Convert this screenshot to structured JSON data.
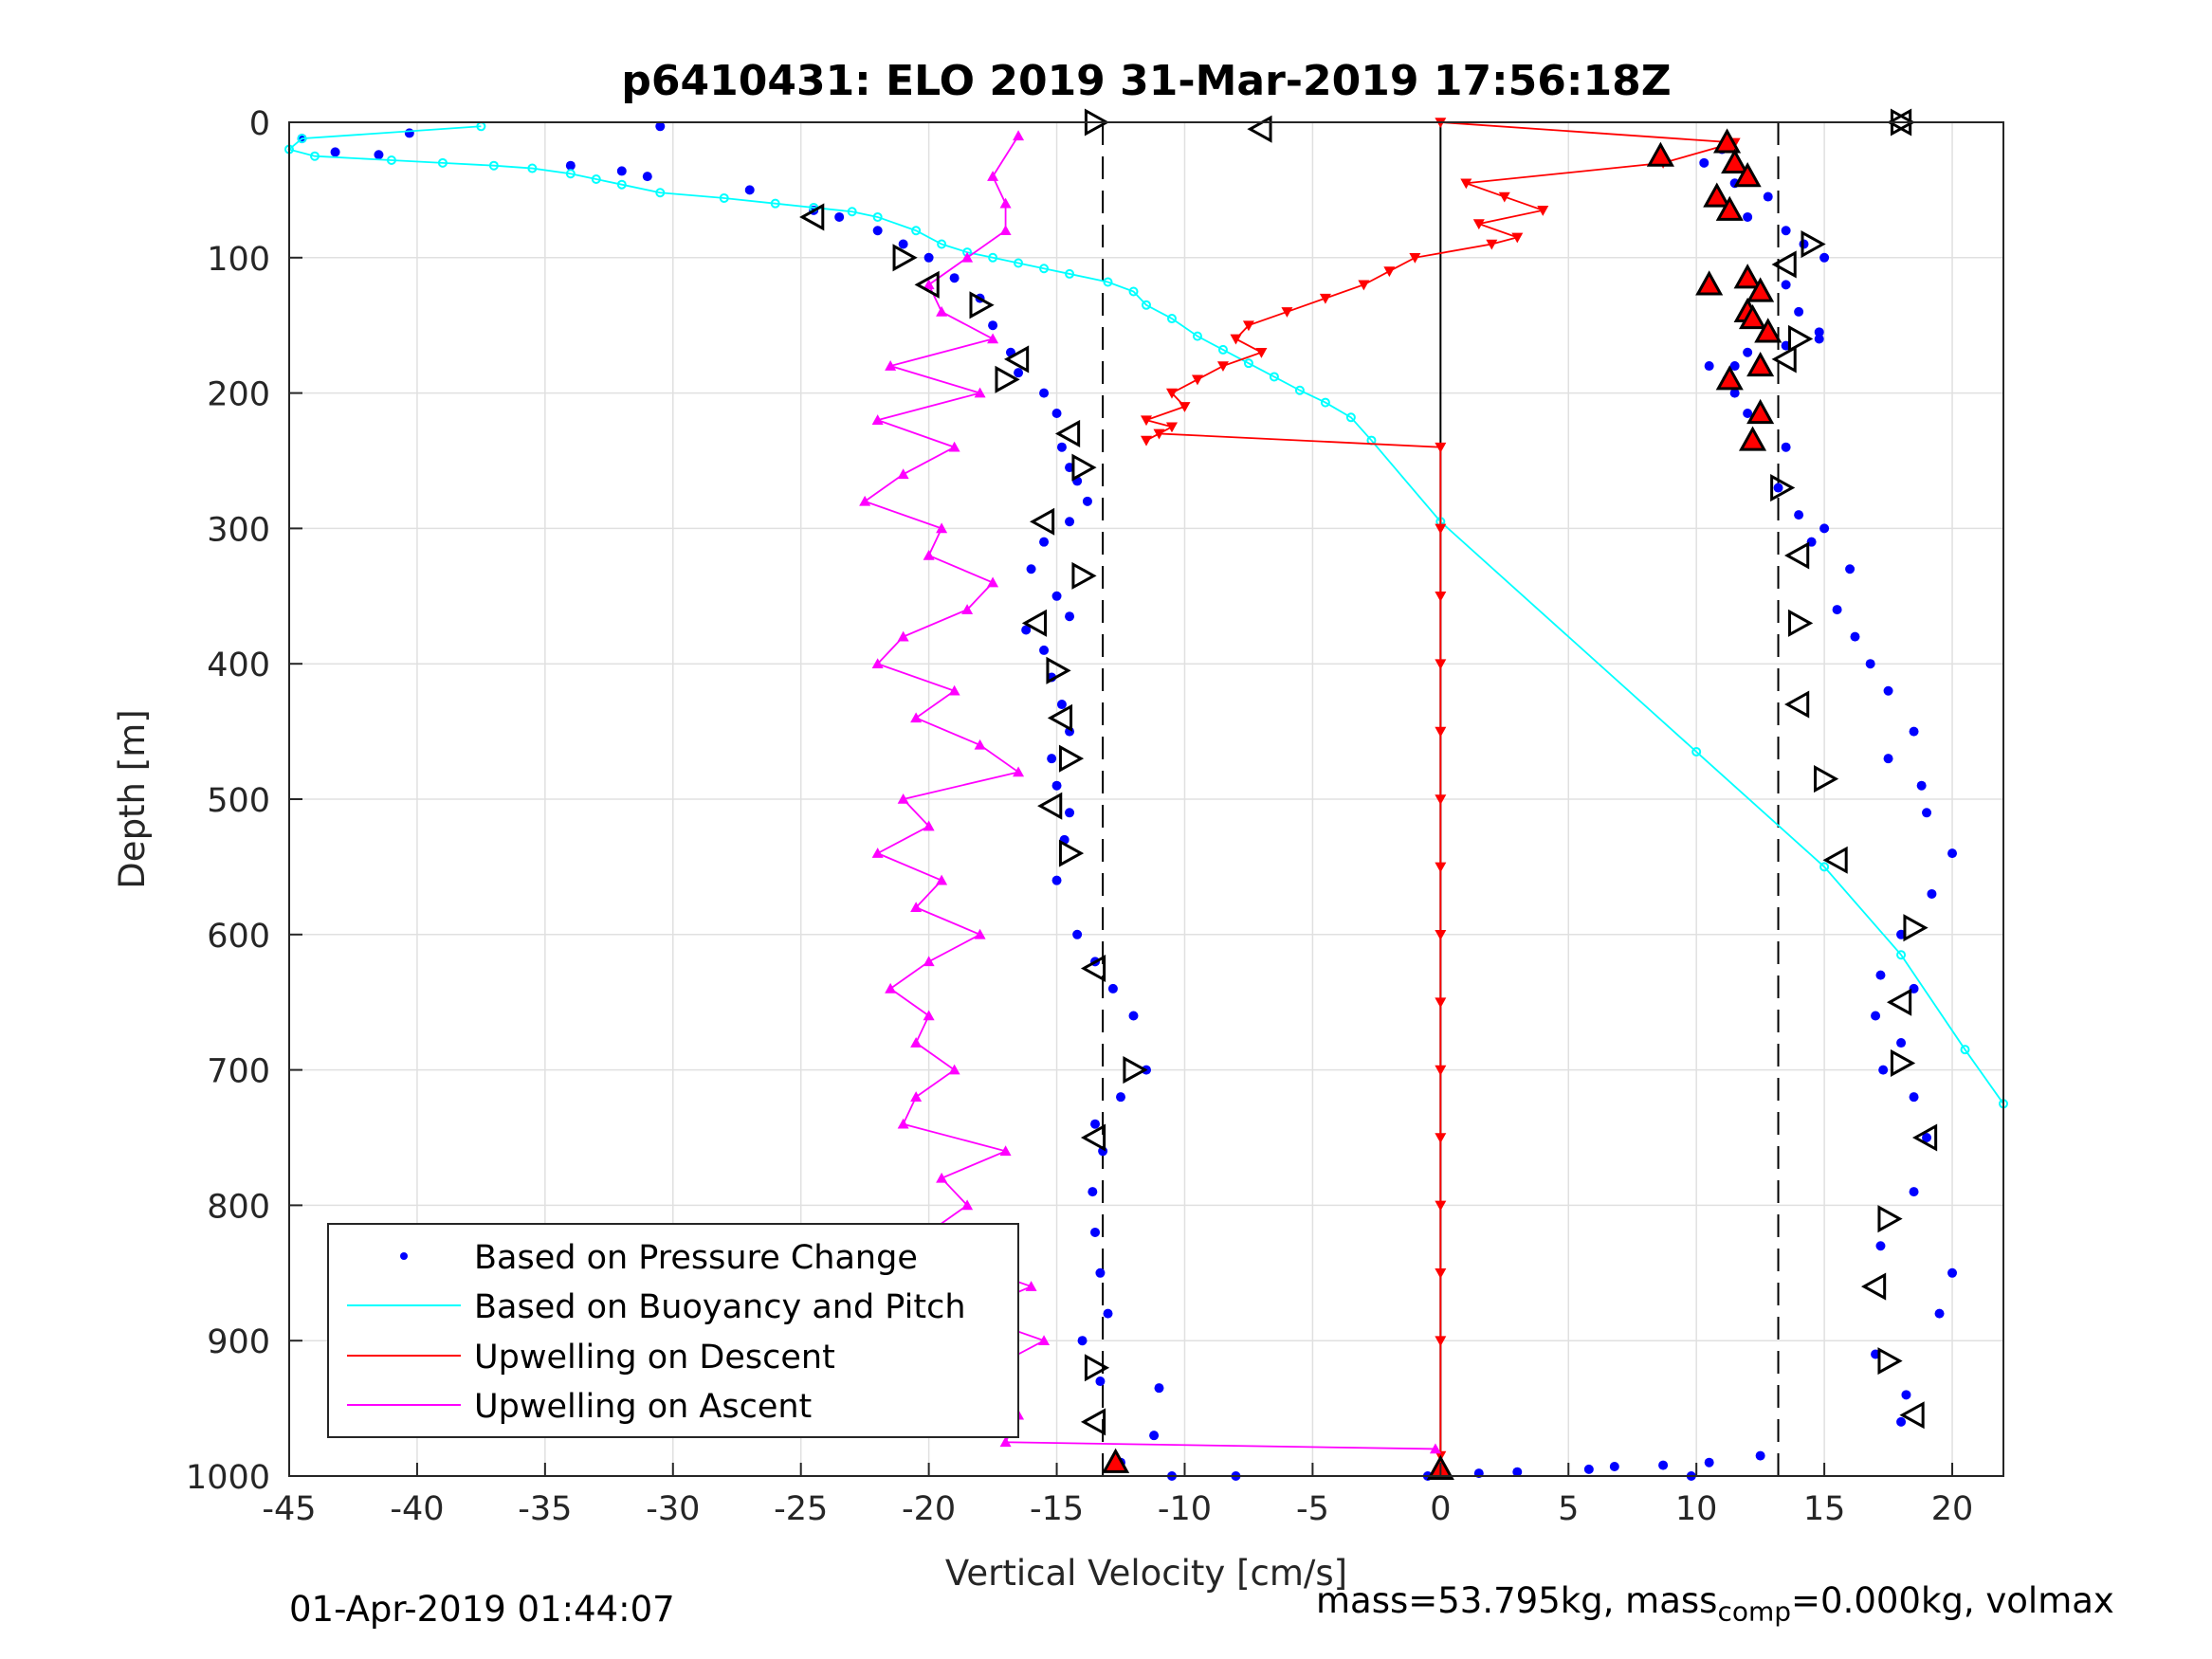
{
  "chart_data": {
    "type": "scatter",
    "title": "p6410431: ELO 2019 31-Mar-2019 17:56:18Z",
    "xlabel": "Vertical Velocity [cm/s]",
    "ylabel": "Depth [m]",
    "xlim": [
      -45,
      22
    ],
    "ylim": [
      1000,
      0
    ],
    "y_reversed": true,
    "xticks": [
      -45,
      -40,
      -35,
      -30,
      -25,
      -20,
      -15,
      -10,
      -5,
      0,
      5,
      10,
      15,
      20
    ],
    "yticks": [
      0,
      100,
      200,
      300,
      400,
      500,
      600,
      700,
      800,
      900,
      1000
    ],
    "grid": true,
    "legend_position": "bottom-left",
    "colors": {
      "pressure": "#0000ff",
      "buoyancy": "#00ffff",
      "descent": "#ff0000",
      "ascent": "#ff00ff"
    },
    "reference_lines": [
      {
        "x": -13.2,
        "style": "dashed"
      },
      {
        "x": 13.2,
        "style": "dashed"
      },
      {
        "x": 0,
        "style": "solid"
      }
    ],
    "series": [
      {
        "name": "Based on Pressure Change",
        "marker": "dot",
        "color": "#0000ff",
        "x": [
          -44.5,
          -40.3,
          -30.5,
          -43.2,
          -41.5,
          -34.0,
          -32.0,
          -31.0,
          -27.0,
          -24.5,
          -23.5,
          -22.0,
          -21.0,
          -20.0,
          -19.0,
          -18.0,
          -17.5,
          -16.8,
          -16.5,
          -15.5,
          -15.0,
          -14.8,
          -14.5,
          -14.2,
          -13.8,
          -14.5,
          -15.5,
          -16.0,
          -15.0,
          -14.5,
          -16.2,
          -15.5,
          -15.2,
          -14.8,
          -14.5,
          -15.2,
          -15.0,
          -14.5,
          -14.7,
          -15.0,
          -14.2,
          -13.5,
          -12.8,
          -12.0,
          -11.5,
          -12.5,
          -13.5,
          -13.2,
          -13.6,
          -13.5,
          -13.3,
          -13.0,
          -14.0,
          -13.3,
          -11.0,
          -11.2,
          -12.5,
          -10.5,
          -8.0,
          -0.5,
          1.5,
          3.0,
          5.8,
          6.8,
          8.7,
          10.5,
          12.5,
          11.0,
          10.3,
          11.5,
          12.8,
          12.0,
          13.5,
          14.2,
          15.0,
          13.5,
          14.0,
          14.8,
          12.0,
          10.5,
          11.2,
          11.5,
          12.0,
          13.5,
          13.2,
          14.0,
          15.0,
          14.5,
          16.0,
          15.5,
          16.2,
          16.8,
          17.5,
          18.5,
          17.5,
          18.8,
          19.0,
          20.0,
          19.2,
          18.0,
          17.2,
          18.5,
          17.0,
          18.0,
          17.3,
          18.5,
          19.0,
          18.5,
          17.2,
          20.0,
          19.5,
          17.0,
          18.2,
          18.0,
          14.8,
          13.5,
          11.5,
          9.8
        ],
        "y": [
          12,
          8,
          3,
          22,
          24,
          32,
          36,
          40,
          50,
          65,
          70,
          80,
          90,
          100,
          115,
          130,
          150,
          170,
          185,
          200,
          215,
          240,
          255,
          265,
          280,
          295,
          310,
          330,
          350,
          365,
          375,
          390,
          410,
          430,
          450,
          470,
          490,
          510,
          530,
          560,
          600,
          620,
          640,
          660,
          700,
          720,
          740,
          760,
          790,
          820,
          850,
          880,
          900,
          930,
          935,
          970,
          990,
          1000,
          1000,
          1000,
          998,
          997,
          995,
          993,
          992,
          990,
          985,
          20,
          30,
          45,
          55,
          70,
          80,
          90,
          100,
          120,
          140,
          160,
          170,
          180,
          190,
          200,
          215,
          240,
          270,
          290,
          300,
          310,
          330,
          360,
          380,
          400,
          420,
          450,
          470,
          490,
          510,
          540,
          570,
          600,
          630,
          640,
          660,
          680,
          700,
          720,
          750,
          790,
          830,
          850,
          880,
          910,
          940,
          960,
          155,
          165,
          180,
          1000
        ]
      },
      {
        "name": "Based on Buoyancy and Pitch",
        "marker": "circle-line",
        "color": "#00ffff",
        "x": [
          -37.5,
          -44.5,
          -45.0,
          -44.0,
          -41.0,
          -39.0,
          -37.0,
          -35.5,
          -34.0,
          -33.0,
          -32.0,
          -30.5,
          -28.0,
          -26.0,
          -24.5,
          -23.0,
          -22.0,
          -20.5,
          -19.5,
          -18.5,
          -17.5,
          -16.5,
          -15.5,
          -14.5,
          -13.0,
          -12.0,
          -11.5,
          -10.5,
          -9.5,
          -8.5,
          -7.5,
          -6.5,
          -5.5,
          -4.5,
          -3.5,
          -2.7,
          0.0,
          10.0,
          15.0,
          18.0,
          20.5,
          22.0
        ],
        "y": [
          3,
          12,
          20,
          25,
          28,
          30,
          32,
          34,
          38,
          42,
          46,
          52,
          56,
          60,
          63,
          66,
          70,
          80,
          90,
          96,
          100,
          104,
          108,
          112,
          118,
          125,
          135,
          145,
          158,
          168,
          178,
          188,
          198,
          207,
          218,
          235,
          295,
          465,
          550,
          615,
          685,
          725
        ]
      },
      {
        "name": "Upwelling on Descent",
        "marker": "triangle-down",
        "color": "#ff0000",
        "x": [
          0.0,
          11.5,
          8.7,
          1.0,
          2.5,
          4.0,
          1.5,
          3.0,
          2.0,
          -1.0,
          -2.0,
          -3.0,
          -4.5,
          -6.0,
          -7.5,
          -8.0,
          -7.0,
          -8.5,
          -9.5,
          -10.5,
          -10.0,
          -11.5,
          -10.5,
          -11.5,
          -11.0,
          0.0,
          0.0,
          0.0,
          0.0,
          0.0,
          0.0,
          0.0,
          0.0,
          0.0,
          0.0,
          0.0,
          0.0,
          0.0,
          0.0,
          0.0
        ],
        "y": [
          0,
          15,
          30,
          45,
          55,
          65,
          75,
          85,
          90,
          100,
          110,
          120,
          130,
          140,
          150,
          160,
          170,
          180,
          190,
          200,
          210,
          220,
          225,
          235,
          230,
          240,
          300,
          350,
          400,
          450,
          500,
          550,
          600,
          650,
          700,
          750,
          800,
          850,
          900,
          985
        ]
      },
      {
        "name": "Upwelling on Ascent",
        "marker": "triangle-up",
        "color": "#ff00ff",
        "x": [
          -0.2,
          -17.0,
          -16.5,
          -19.0,
          -17.5,
          -15.5,
          -18.5,
          -16.0,
          -19.0,
          -20.0,
          -18.5,
          -19.5,
          -17.0,
          -21.0,
          -20.5,
          -19.0,
          -20.5,
          -20.0,
          -21.5,
          -20.0,
          -18.0,
          -20.5,
          -19.5,
          -22.0,
          -20.0,
          -21.0,
          -16.5,
          -18.0,
          -20.5,
          -19.0,
          -22.0,
          -21.0,
          -18.5,
          -17.5,
          -20.0,
          -19.5,
          -22.5,
          -21.0,
          -19.0,
          -22.0,
          -18.0,
          -21.5,
          -17.5,
          -19.5,
          -20.0,
          -18.5,
          -17.0,
          -17.0,
          -17.5,
          -16.5
        ],
        "y": [
          980,
          975,
          955,
          940,
          920,
          900,
          880,
          860,
          840,
          820,
          800,
          780,
          760,
          740,
          720,
          700,
          680,
          660,
          640,
          620,
          600,
          580,
          560,
          540,
          520,
          500,
          480,
          460,
          440,
          420,
          400,
          380,
          360,
          340,
          320,
          300,
          280,
          260,
          240,
          220,
          200,
          180,
          160,
          140,
          120,
          100,
          80,
          60,
          40,
          10
        ]
      }
    ],
    "overlay_markers": {
      "hollow_triangles_descent": {
        "x": [
          -24.5,
          -21.0,
          -20.0,
          -18.0,
          -16.5,
          -17.0,
          -14.5,
          -14.0,
          -15.5,
          -14.0,
          -15.8,
          -15.0,
          -14.8,
          -14.5,
          -15.2,
          -14.5,
          -13.5,
          -12.0,
          -13.5,
          -13.5,
          -13.5,
          -13.5
        ],
        "y": [
          70,
          100,
          120,
          135,
          175,
          190,
          230,
          255,
          295,
          335,
          370,
          405,
          440,
          470,
          505,
          540,
          625,
          700,
          750,
          920,
          960,
          0
        ]
      },
      "hollow_triangles_ascent": {
        "x": [
          -7.0,
          14.5,
          13.5,
          14.0,
          13.5,
          13.3,
          14.0,
          14.0,
          14.0,
          15.0,
          15.5,
          18.5,
          18.0,
          18.0,
          19.0,
          17.5,
          17.0,
          17.5,
          18.5,
          18.0,
          18.0
        ],
        "y": [
          5,
          90,
          105,
          160,
          175,
          270,
          320,
          370,
          430,
          485,
          545,
          595,
          650,
          695,
          750,
          810,
          860,
          915,
          955,
          0,
          0
        ]
      },
      "red_filled_triangles": {
        "x": [
          11.2,
          8.6,
          11.5,
          12.0,
          10.8,
          11.3,
          10.5,
          12.0,
          12.5,
          12.0,
          12.2,
          12.8,
          12.5,
          11.3,
          12.2,
          12.5,
          -12.7,
          0.0
        ],
        "y": [
          15,
          25,
          30,
          40,
          55,
          65,
          120,
          115,
          125,
          140,
          145,
          155,
          180,
          190,
          235,
          215,
          990,
          995
        ]
      }
    },
    "footer_left": "01-Apr-2019 01:44:07",
    "footer_right_main": "mass=53.795kg, mass",
    "footer_right_sub": "comp",
    "footer_right_tail": "=0.000kg, volmax"
  }
}
